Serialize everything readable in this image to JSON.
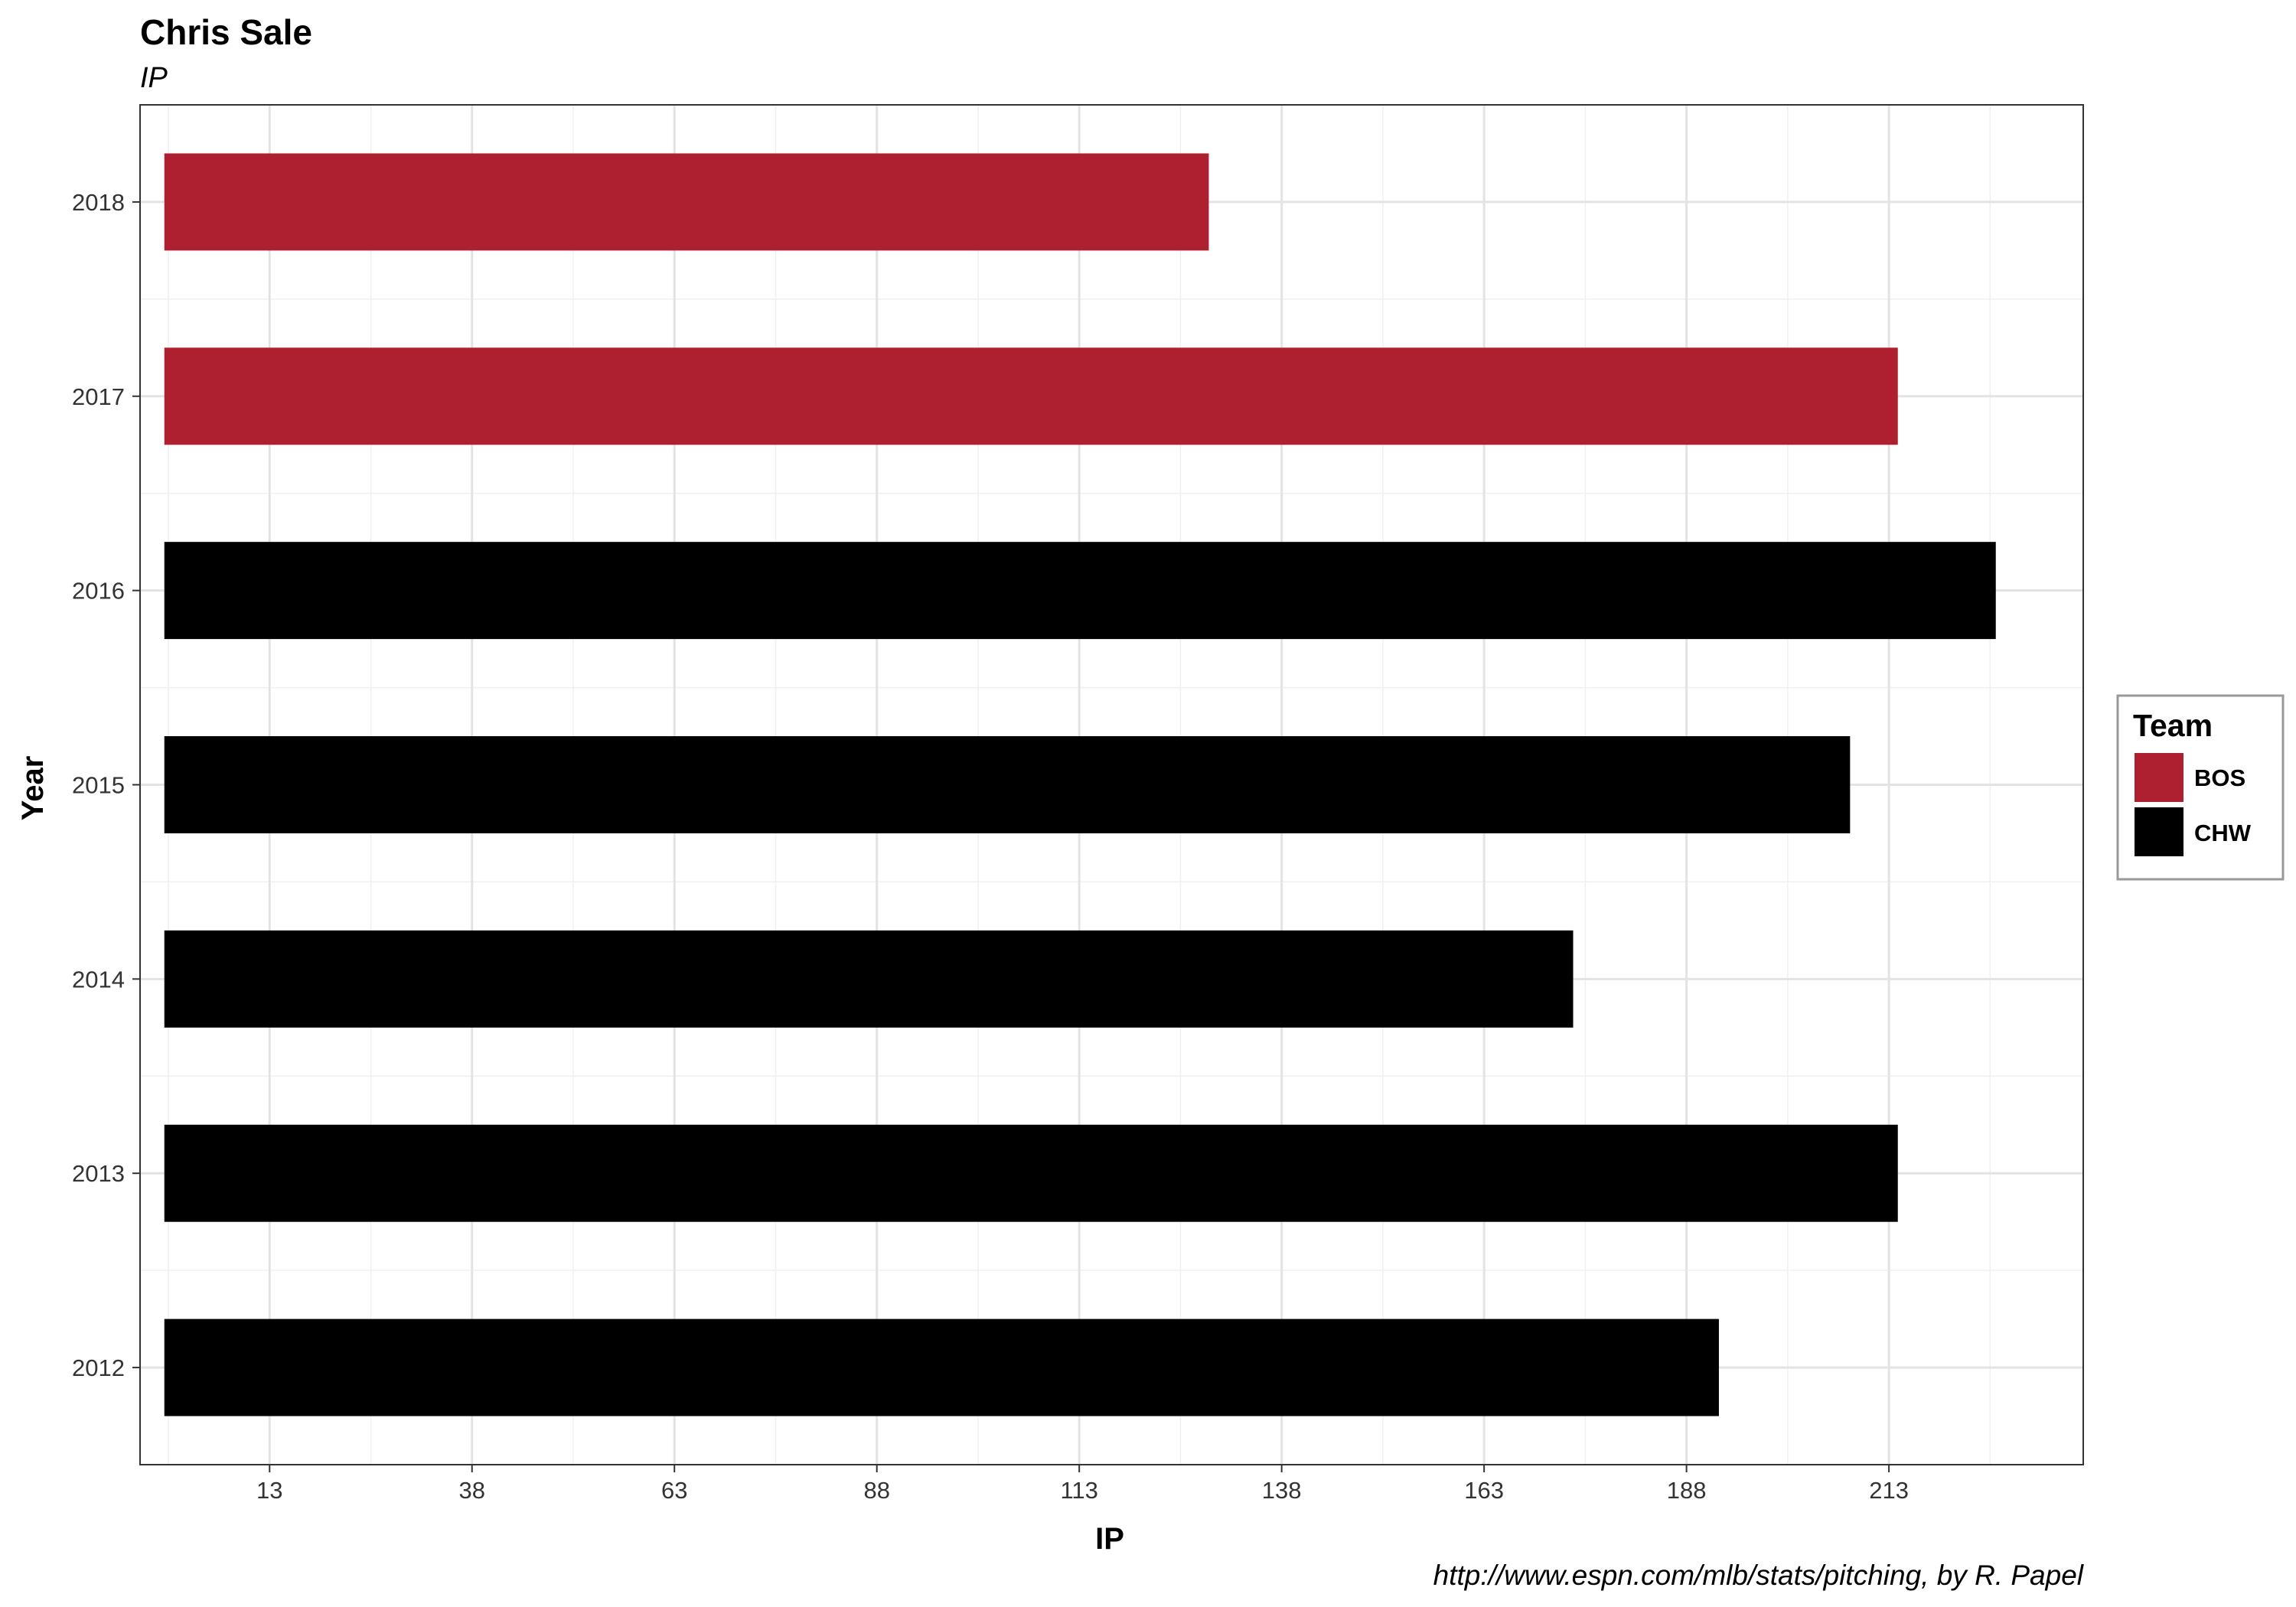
{
  "chart_data": {
    "type": "bar",
    "orientation": "horizontal",
    "title": "Chris Sale",
    "subtitle": "IP",
    "xlabel": "IP",
    "ylabel": "Year",
    "caption": "http://www.espn.com/mlb/stats/pitching, by R. Papel",
    "categories": [
      "2012",
      "2013",
      "2014",
      "2015",
      "2016",
      "2017",
      "2018"
    ],
    "values": [
      192,
      214.1,
      174,
      208.2,
      226.2,
      214.1,
      129
    ],
    "teams": [
      "CHW",
      "CHW",
      "CHW",
      "CHW",
      "CHW",
      "BOS",
      "BOS"
    ],
    "xlim": [
      -3,
      237
    ],
    "x_ticks": [
      "13",
      "38",
      "63",
      "88",
      "113",
      "138",
      "163",
      "188",
      "213"
    ],
    "x_tick_values": [
      13,
      38,
      63,
      88,
      113,
      138,
      163,
      188,
      213
    ],
    "grid": true,
    "legend": {
      "title": "Team",
      "position": "right",
      "entries": [
        {
          "label": "BOS",
          "color": "#AE1F2F"
        },
        {
          "label": "CHW",
          "color": "#000000"
        }
      ]
    }
  }
}
